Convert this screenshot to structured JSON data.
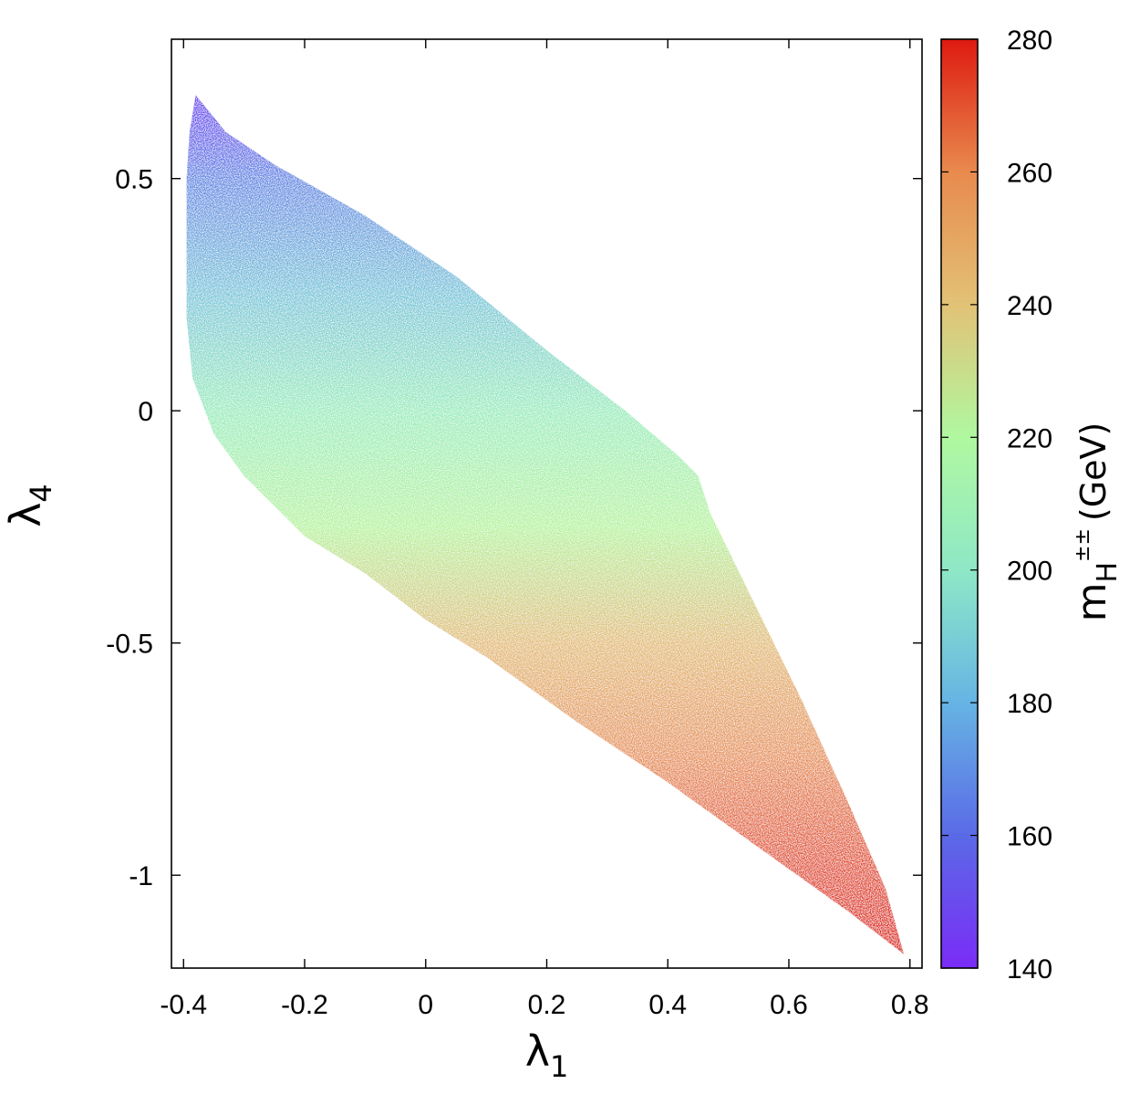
{
  "chart_data": {
    "type": "scatter",
    "title": "",
    "xlabel": {
      "symbol": "λ",
      "subscript": "1"
    },
    "ylabel": {
      "symbol": "λ",
      "subscript": "4"
    },
    "xlim": [
      -0.42,
      0.82
    ],
    "ylim": [
      -1.2,
      0.8
    ],
    "x_ticks": [
      {
        "value": -0.4,
        "label": "-0.4"
      },
      {
        "value": -0.2,
        "label": "-0.2"
      },
      {
        "value": 0,
        "label": "0"
      },
      {
        "value": 0.2,
        "label": "0.2"
      },
      {
        "value": 0.4,
        "label": "0.4"
      },
      {
        "value": 0.6,
        "label": "0.6"
      },
      {
        "value": 0.8,
        "label": "0.8"
      }
    ],
    "y_ticks": [
      {
        "value": 0.5,
        "label": "0.5"
      },
      {
        "value": 0,
        "label": "0"
      },
      {
        "value": -0.5,
        "label": "-0.5"
      },
      {
        "value": -1,
        "label": "-1"
      }
    ],
    "grid": false,
    "legend": "none",
    "region_boundary": [
      [
        -0.38,
        0.68
      ],
      [
        -0.33,
        0.6
      ],
      [
        -0.25,
        0.53
      ],
      [
        -0.1,
        0.42
      ],
      [
        0.05,
        0.29
      ],
      [
        0.2,
        0.13
      ],
      [
        0.33,
        0.0
      ],
      [
        0.42,
        -0.1
      ],
      [
        0.45,
        -0.14
      ],
      [
        0.47,
        -0.22
      ],
      [
        0.5,
        -0.3
      ],
      [
        0.56,
        -0.46
      ],
      [
        0.62,
        -0.62
      ],
      [
        0.7,
        -0.85
      ],
      [
        0.76,
        -1.03
      ],
      [
        0.79,
        -1.17
      ],
      [
        0.7,
        -1.08
      ],
      [
        0.55,
        -0.94
      ],
      [
        0.4,
        -0.8
      ],
      [
        0.25,
        -0.67
      ],
      [
        0.1,
        -0.53
      ],
      [
        0.0,
        -0.45
      ],
      [
        -0.1,
        -0.35
      ],
      [
        -0.2,
        -0.27
      ],
      [
        -0.3,
        -0.14
      ],
      [
        -0.35,
        -0.05
      ],
      [
        -0.385,
        0.07
      ],
      [
        -0.395,
        0.2
      ],
      [
        -0.395,
        0.5
      ],
      [
        -0.39,
        0.6
      ]
    ],
    "color_dimension": {
      "label_main": "m",
      "label_sub": "H",
      "label_sup": "±±",
      "label_unit": "(GeV)",
      "range": [
        140,
        280
      ],
      "ticks": [
        "140",
        "160",
        "180",
        "200",
        "220",
        "240",
        "260",
        "280"
      ],
      "colormap": [
        {
          "value": 140,
          "color": "#7a2cf6"
        },
        {
          "value": 160,
          "color": "#5a6ae6"
        },
        {
          "value": 180,
          "color": "#66b4e4"
        },
        {
          "value": 200,
          "color": "#8ee8c6"
        },
        {
          "value": 220,
          "color": "#b0f8a0"
        },
        {
          "value": 240,
          "color": "#e2c276"
        },
        {
          "value": 260,
          "color": "#e88a4e"
        },
        {
          "value": 280,
          "color": "#de1a10"
        }
      ],
      "mass_at_lambda4": [
        {
          "lambda4": 0.68,
          "value": 146
        },
        {
          "lambda4": 0.5,
          "value": 168
        },
        {
          "lambda4": 0.25,
          "value": 187
        },
        {
          "lambda4": 0.0,
          "value": 205
        },
        {
          "lambda4": -0.25,
          "value": 222
        },
        {
          "lambda4": -0.5,
          "value": 242
        },
        {
          "lambda4": -0.75,
          "value": 258
        },
        {
          "lambda4": -1.0,
          "value": 272
        },
        {
          "lambda4": -1.18,
          "value": 280
        }
      ]
    }
  }
}
